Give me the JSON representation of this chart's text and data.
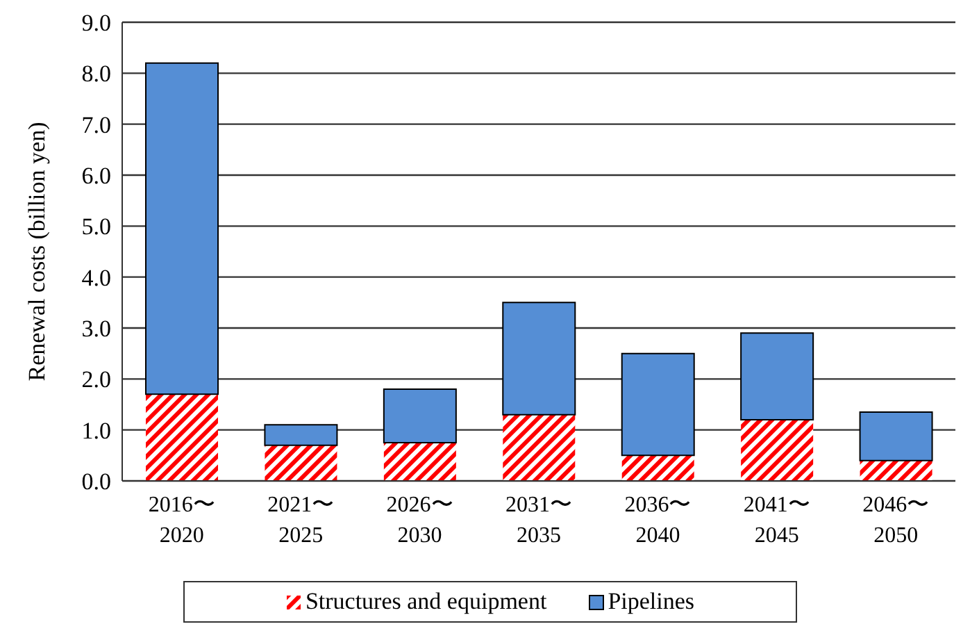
{
  "chart_data": {
    "type": "bar",
    "stacked": true,
    "ylabel": "Renewal costs (billion  yen)",
    "categories": [
      "2016〜\n2020",
      "2021〜\n2025",
      "2026〜\n2030",
      "2031〜\n2035",
      "2036〜\n2040",
      "2041〜\n2045",
      "2046〜\n2050"
    ],
    "series": [
      {
        "name": "Structures and equipment",
        "color": "#ff0000",
        "values": [
          1.7,
          0.7,
          0.75,
          1.3,
          0.5,
          1.2,
          0.4
        ]
      },
      {
        "name": "Pipelines",
        "color": "#558ed5",
        "values": [
          6.5,
          0.4,
          1.05,
          2.2,
          2.0,
          1.7,
          0.95
        ]
      }
    ],
    "ylim": [
      0,
      9
    ],
    "yticks": [
      {
        "value": 0,
        "label": "0.0"
      },
      {
        "value": 1,
        "label": "1.0"
      },
      {
        "value": 2,
        "label": "2.0"
      },
      {
        "value": 3,
        "label": "3.0"
      },
      {
        "value": 4,
        "label": "4.0"
      },
      {
        "value": 5,
        "label": "5.0"
      },
      {
        "value": 6,
        "label": "6.0"
      },
      {
        "value": 7,
        "label": "7.0"
      },
      {
        "value": 8,
        "label": "8.0"
      },
      {
        "value": 9,
        "label": "9.0"
      }
    ],
    "grid": "y",
    "legend": "bottom"
  }
}
